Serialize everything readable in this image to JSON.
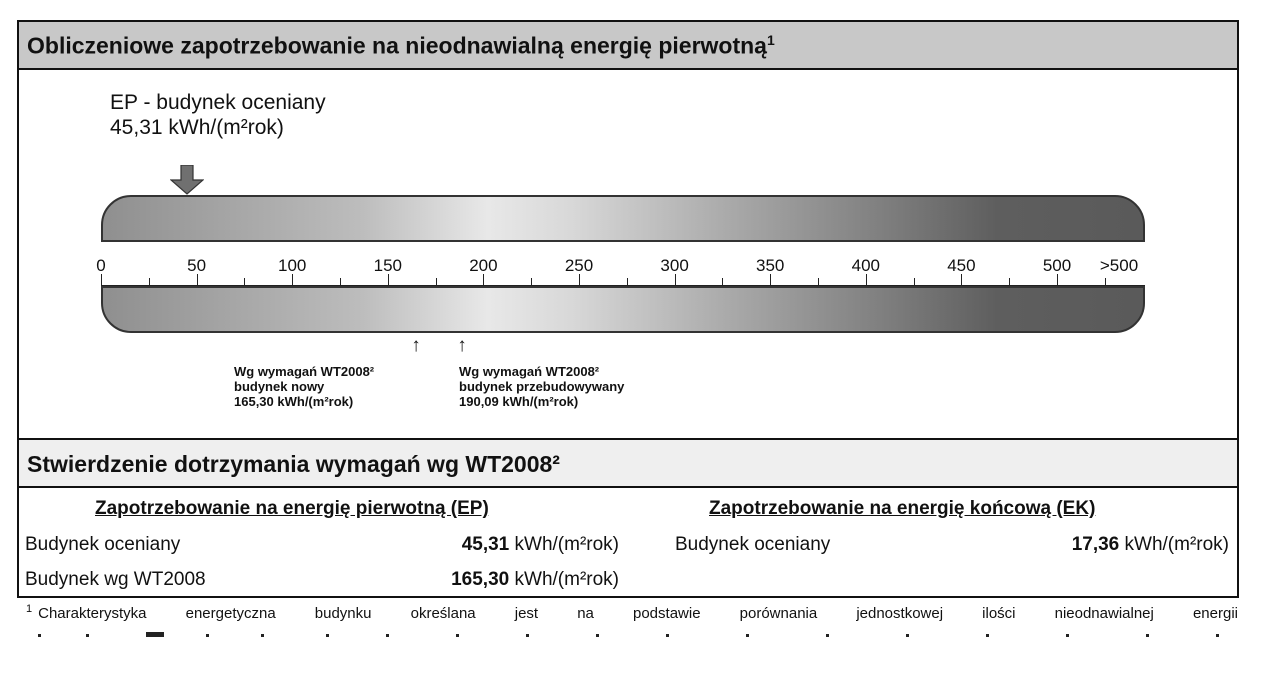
{
  "section1": {
    "title": "Obliczeniowe zapotrzebowanie na nieodnawialną energię pierwotną",
    "title_sup": "1",
    "ep_label_line1": "EP - budynek oceniany",
    "ep_label_line2": "45,31 kWh/(m²rok)",
    "scale_labels": [
      "0",
      "50",
      "100",
      "150",
      "200",
      "250",
      "300",
      "350",
      "400",
      "450",
      "500",
      ">500"
    ],
    "ref_new": {
      "line1": "Wg wymagań WT2008²",
      "line2": "budynek nowy",
      "line3": "165,30 kWh/(m²rok)"
    },
    "ref_rebuilt": {
      "line1": "Wg wymagań WT2008²",
      "line2": "budynek przebudowywany",
      "line3": "190,09 kWh/(m²rok)"
    },
    "arrow_glyph": "↑"
  },
  "chart_data": {
    "type": "gauge-scale",
    "title": "Obliczeniowe zapotrzebowanie na nieodnawialną energię pierwotną",
    "unit": "kWh/(m²rok)",
    "axis_ticks": [
      0,
      50,
      100,
      150,
      200,
      250,
      300,
      350,
      400,
      450,
      500
    ],
    "axis_extra_label": ">500",
    "range": [
      0,
      500
    ],
    "markers": [
      {
        "name": "EP - budynek oceniany",
        "value": 45.31
      },
      {
        "name": "Wg wymagań WT2008² budynek nowy",
        "value": 165.3
      },
      {
        "name": "Wg wymagań WT2008² budynek przebudowywany",
        "value": 190.09
      }
    ]
  },
  "section2": {
    "title": "Stwierdzenie dotrzymania wymagań wg WT2008²",
    "ep_column": {
      "title": "Zapotrzebowanie na energię pierwotną (EP)",
      "rows": [
        {
          "label": "Budynek oceniany",
          "value": "45,31",
          "unit": "kWh/(m²rok)"
        },
        {
          "label": "Budynek wg WT2008",
          "value": "165,30",
          "unit": "kWh/(m²rok)"
        }
      ]
    },
    "ek_column": {
      "title": "Zapotrzebowanie na energię końcową (EK)",
      "rows": [
        {
          "label": "Budynek oceniany",
          "value": "17,36",
          "unit": "kWh/(m²rok)"
        }
      ]
    }
  },
  "footnote": {
    "marker": "1",
    "text": "Charakterystyka energetyczna budynku określana jest na podstawie porównania jednostkowej ilości nieodnawialnej energii"
  }
}
